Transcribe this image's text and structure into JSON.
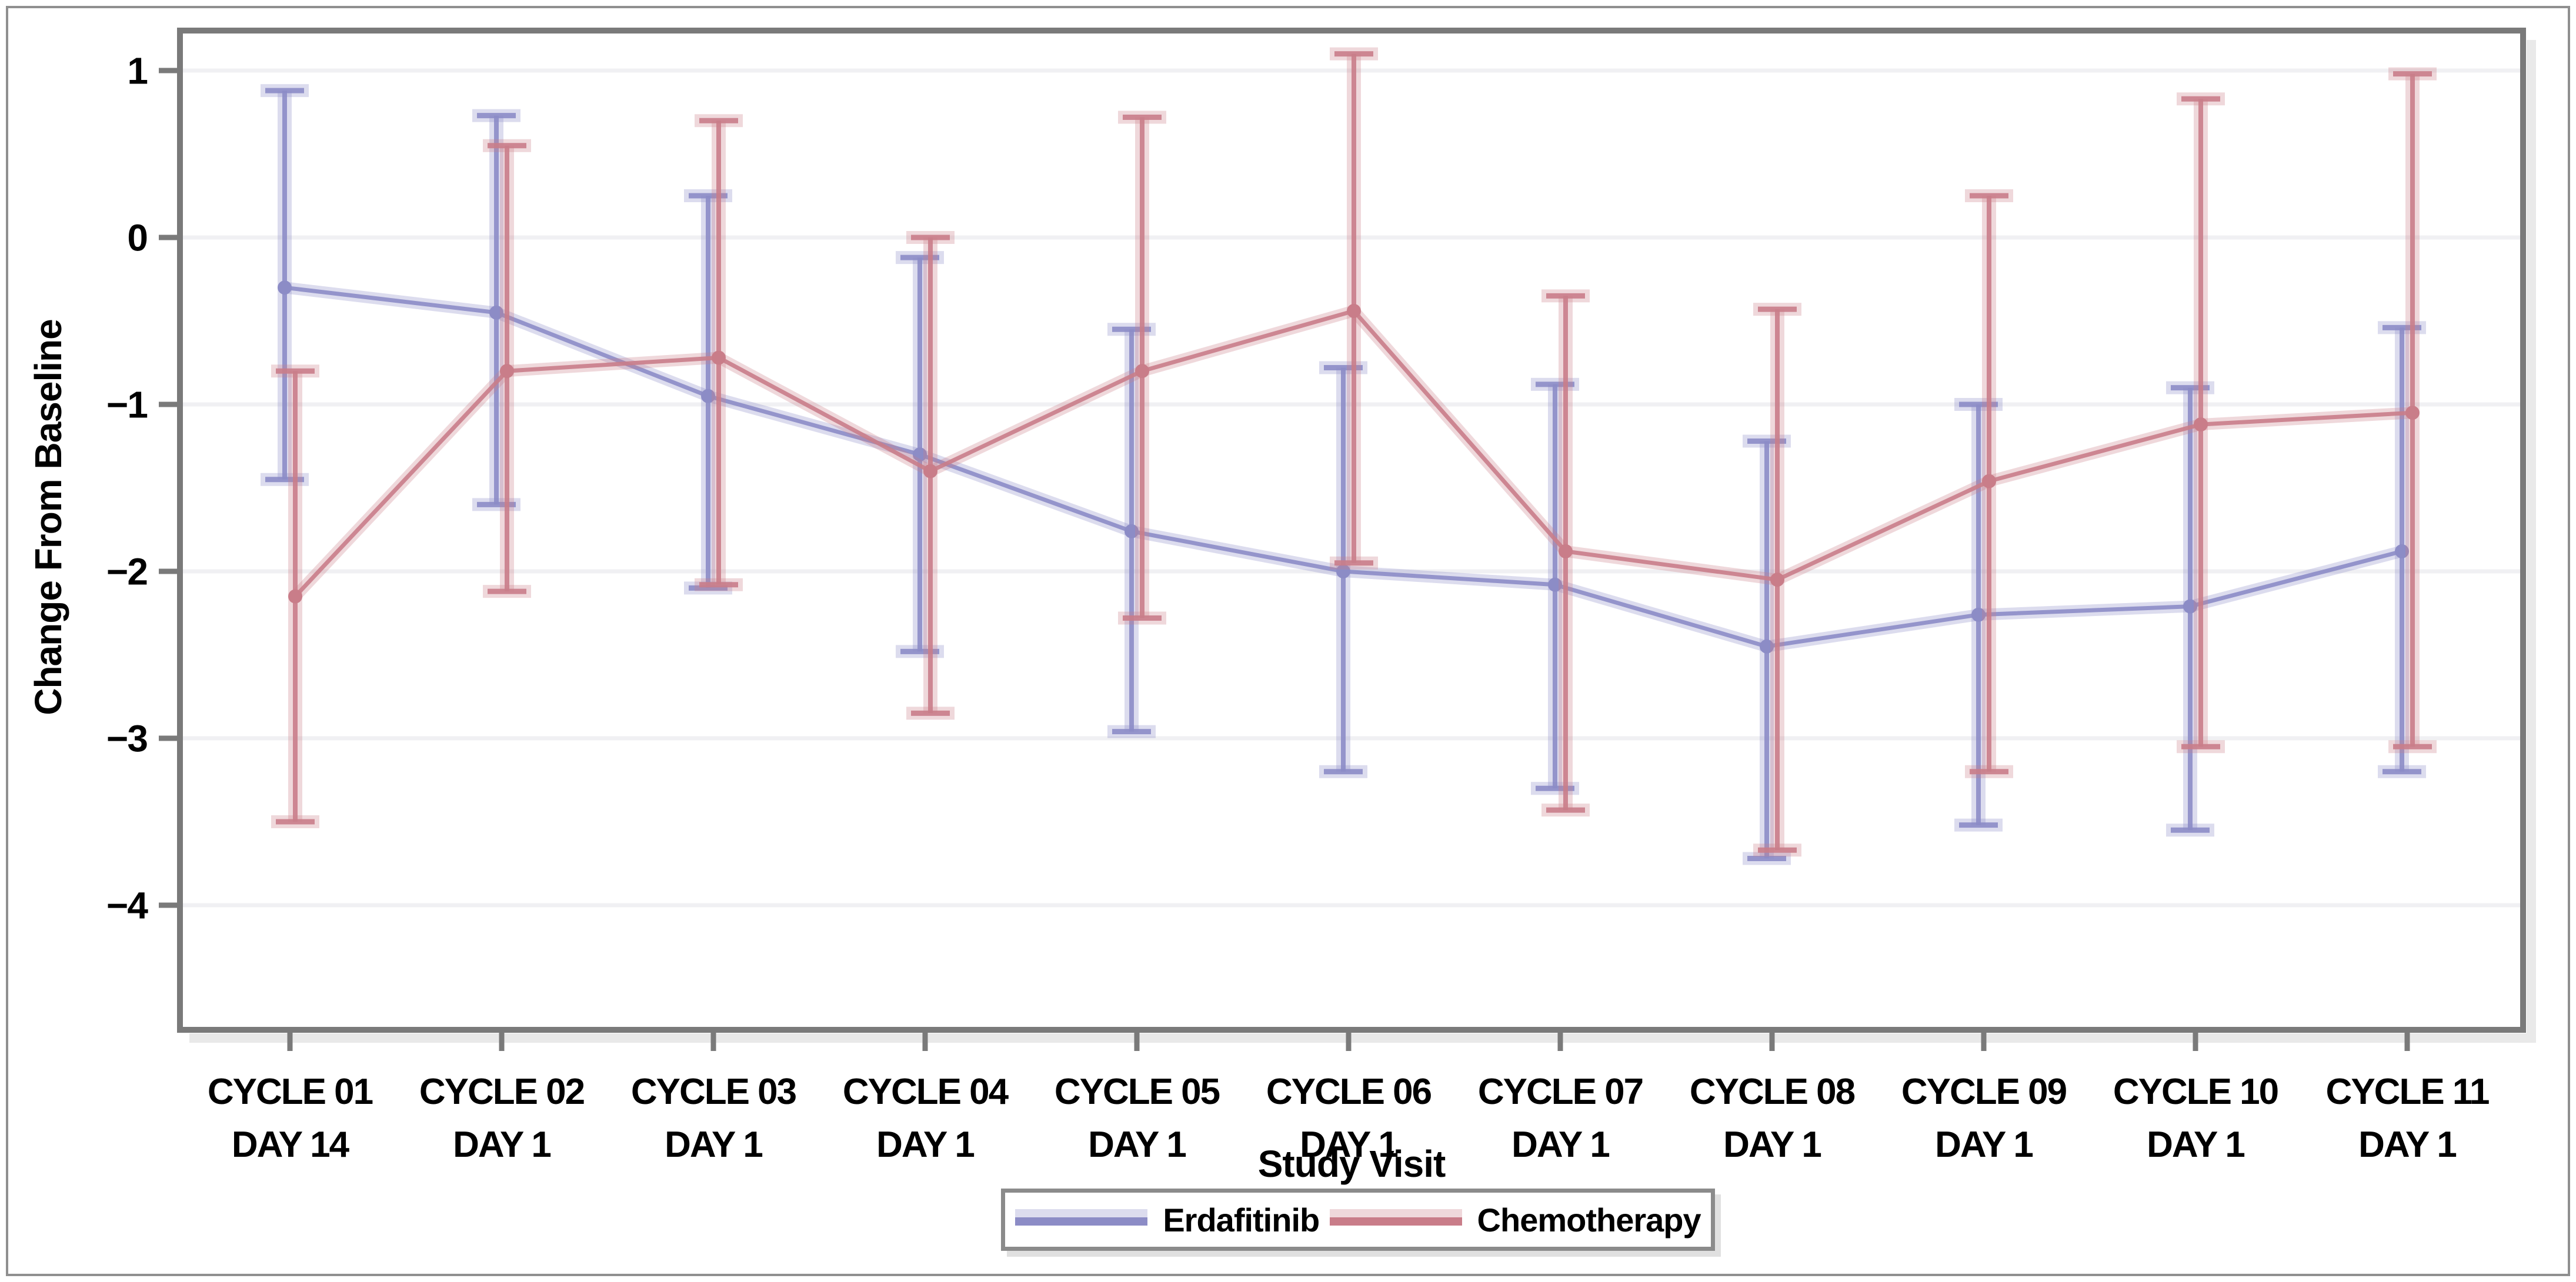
{
  "chart_data": {
    "type": "line",
    "title": "",
    "xlabel": "Study Visit",
    "ylabel": "Change From Baseline",
    "ylim": [
      -4.75,
      1.25
    ],
    "yticks": [
      1,
      0,
      -1,
      -2,
      -3,
      -4
    ],
    "ytick_labels": [
      "1",
      "0",
      "−1",
      "−2",
      "−3",
      "−4"
    ],
    "grid": "horizontal",
    "legend_position": "bottom",
    "categories": [
      {
        "line1": "CYCLE 01",
        "line2": "DAY 14"
      },
      {
        "line1": "CYCLE 02",
        "line2": "DAY 1"
      },
      {
        "line1": "CYCLE 03",
        "line2": "DAY 1"
      },
      {
        "line1": "CYCLE 04",
        "line2": "DAY 1"
      },
      {
        "line1": "CYCLE 05",
        "line2": "DAY 1"
      },
      {
        "line1": "CYCLE 06",
        "line2": "DAY 1"
      },
      {
        "line1": "CYCLE 07",
        "line2": "DAY 1"
      },
      {
        "line1": "CYCLE 08",
        "line2": "DAY 1"
      },
      {
        "line1": "CYCLE 09",
        "line2": "DAY 1"
      },
      {
        "line1": "CYCLE 10",
        "line2": "DAY 1"
      },
      {
        "line1": "CYCLE 11",
        "line2": "DAY 1"
      }
    ],
    "series": [
      {
        "name": "Erdafitinib",
        "color": "#8c8cc6",
        "halo_color": "rgba(140,140,198,0.30)",
        "mean": [
          -0.3,
          -0.45,
          -0.95,
          -1.3,
          -1.76,
          -2.0,
          -2.08,
          -2.45,
          -2.26,
          -2.21,
          -1.88
        ],
        "hi": [
          0.88,
          0.73,
          0.25,
          -0.12,
          -0.55,
          -0.78,
          -0.88,
          -1.22,
          -1.0,
          -0.9,
          -0.54
        ],
        "lo": [
          -1.45,
          -1.6,
          -2.1,
          -2.48,
          -2.96,
          -3.2,
          -3.3,
          -3.72,
          -3.52,
          -3.55,
          -3.2
        ]
      },
      {
        "name": "Chemotherapy",
        "color": "#c97d89",
        "halo_color": "rgba(201,125,137,0.30)",
        "mean": [
          -2.15,
          -0.8,
          -0.72,
          -1.4,
          -0.8,
          -0.44,
          -1.88,
          -2.05,
          -1.46,
          -1.12,
          -1.05
        ],
        "hi": [
          -0.8,
          0.55,
          0.7,
          0.0,
          0.72,
          1.1,
          -0.35,
          -0.43,
          0.25,
          0.83,
          0.98
        ],
        "lo": [
          -3.5,
          -2.12,
          -2.08,
          -2.85,
          -2.28,
          -1.95,
          -3.43,
          -3.67,
          -3.2,
          -3.05,
          -3.05
        ]
      }
    ],
    "style": {
      "plot_border_color": "#7a7a7a",
      "gridline_color": "#f0f0f3",
      "shadow_color": "#e9e9e9",
      "text_color": "#000000"
    }
  }
}
